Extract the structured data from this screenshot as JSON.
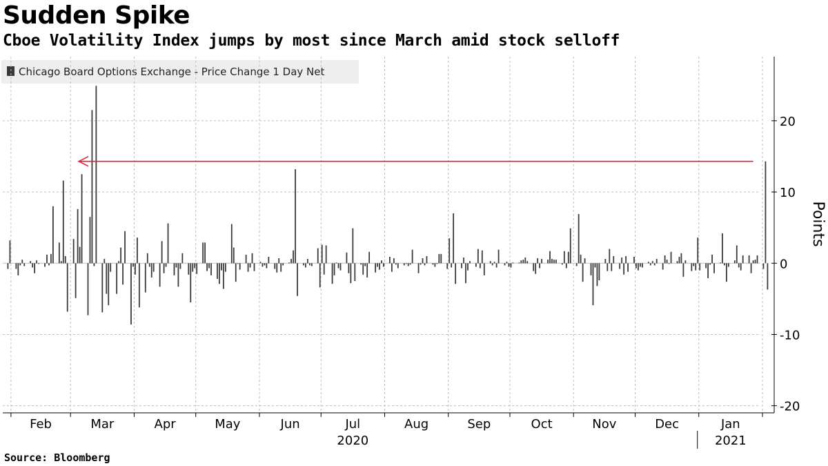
{
  "header": {
    "title": "Sudden Spike",
    "subtitle": "Cboe Volatility Index jumps by most since March amid stock selloff"
  },
  "footer": {
    "source": "Source: Bloomberg"
  },
  "colors": {
    "bar": "#3a3a3a",
    "arrow": "#e0243c",
    "grid": "#bdbdbd",
    "legend_bg": "#eeeeee"
  },
  "chart_data": {
    "type": "bar",
    "legend": [
      "Chicago Board Options Exchange - Price Change 1 Day Net"
    ],
    "legend_position": "top-left",
    "ylabel": "Points",
    "ylim": [
      -21,
      29
    ],
    "yticks": [
      -20,
      -10,
      0,
      10,
      20
    ],
    "y_axis_side": "right",
    "grid": true,
    "x_labels": [
      "Feb",
      "Mar",
      "Apr",
      "May",
      "Jun",
      "Jul",
      "Aug",
      "Sep",
      "Oct",
      "Nov",
      "Dec",
      "Jan"
    ],
    "year_labels": [
      {
        "label": "2020",
        "month": "Jul"
      },
      {
        "label": "2021",
        "month": "Jan"
      }
    ],
    "annotation": {
      "type": "arrow",
      "y": 14.3,
      "from": "2021-01-27",
      "to": "2020-03-05"
    },
    "series": [
      {
        "start_date": "2020-01-30",
        "values": [
          -0.8,
          3.2,
          -0.8,
          -1.7,
          -0.3,
          0.5,
          -0.4,
          0.3,
          -0.6,
          -1.4,
          0.4,
          -0.1,
          -0.5,
          1.2,
          -0.3,
          1.3,
          8.0,
          2.9,
          0.3,
          11.6,
          1.0,
          -6.8,
          3.4,
          -4.9,
          7.6,
          2.3,
          12.5,
          -7.3,
          6.5,
          21.5,
          -0.4,
          24.9,
          -6.9,
          0.6,
          -4.3,
          -5.9,
          -1.2,
          -4.3,
          0.3,
          2.2,
          -3.0,
          4.5,
          -8.6,
          -0.5,
          -1.6,
          3.6,
          -6.2,
          -4.1,
          1.4,
          -0.5,
          -2.0,
          -1.2,
          -3.3,
          3.1,
          -1.4,
          -0.5,
          5.6,
          -1.7,
          -0.6,
          -3.3,
          -0.8,
          1.4,
          -1.6,
          -5.5,
          -1.2,
          -0.7,
          -1.5,
          2.9,
          2.9,
          -1.1,
          -0.7,
          -1.7,
          -2.2,
          -2.9,
          -1.0,
          -3.6,
          -1.2,
          5.5,
          2.2,
          -2.6,
          -0.1,
          -0.9,
          1.2,
          -1.2,
          -0.6,
          1.4,
          -1.1,
          0.2,
          -0.5,
          -0.3,
          -0.7,
          0.9,
          -0.8,
          -1.3,
          0.7,
          -1.2,
          -0.3,
          0.1,
          0.6,
          1.8,
          13.2,
          -4.6,
          -0.3,
          -0.6,
          0.6,
          -0.3,
          -0.4,
          2.1,
          -3.4,
          2.6,
          -1.6,
          2.5,
          -2.9,
          -1.7,
          0.1,
          -0.7,
          -1.0,
          1.5,
          -1.4,
          -2.8,
          4.9,
          -2.5,
          -0.2,
          -1.6,
          -0.4,
          -2.0,
          1.6,
          -1.3,
          -0.5,
          -0.9,
          0.4,
          -0.5,
          0.9,
          -1.2,
          0.7,
          -0.2,
          -0.7,
          -0.3,
          -0.1,
          -0.4,
          -0.2,
          1.9,
          -1.4,
          -0.2,
          0.7,
          -0.3,
          1.0,
          -0.2,
          -0.5,
          -0.1,
          1.3,
          1.3,
          -0.8,
          3.5,
          -0.6,
          7.0,
          -2.9,
          -0.7,
          0.8,
          -2.8,
          -1.0,
          0.3,
          -0.5,
          2.0,
          -0.7,
          1.8,
          -1.7,
          0.3,
          -0.3,
          0.2,
          -0.6,
          1.9,
          -0.3,
          0.2,
          -0.5,
          -0.6,
          0.1,
          0.1,
          0.4,
          0.5,
          0.8,
          0.3,
          -1.1,
          -1.5,
          0.7,
          -0.7,
          0.6,
          0.5,
          1.7,
          0.6,
          0.5,
          0.5,
          -0.2,
          1.7,
          -0.7,
          1.6,
          4.9,
          -0.4,
          6.9,
          1.2,
          -2.6,
          0.7,
          -1.7,
          -5.9,
          -0.6,
          -3.2,
          -2.4,
          0.6,
          -1.1,
          2.0,
          -1.1,
          1.0,
          -0.8,
          0.8,
          -1.6,
          1.0,
          -1.2,
          0.9,
          -0.7,
          -1.0,
          -0.5,
          -0.6,
          0.2,
          -0.3,
          0.3,
          -0.3,
          0.6,
          -0.9,
          1.1,
          0.5,
          -0.1,
          1.6,
          0.3,
          0.9,
          1.4,
          -1.9,
          0.4,
          -1.1,
          -0.4,
          -1.0,
          3.6,
          -1.0,
          -0.7,
          -2.1,
          -0.2,
          1.2,
          -1.4,
          0.1,
          4.2,
          -0.3,
          -2.6,
          -0.5,
          0.4,
          2.5,
          -0.6,
          -1.0,
          1.1,
          1.1,
          -1.4,
          0.4,
          0.5,
          1.1,
          -0.8,
          14.3,
          -3.7
        ]
      }
    ]
  }
}
